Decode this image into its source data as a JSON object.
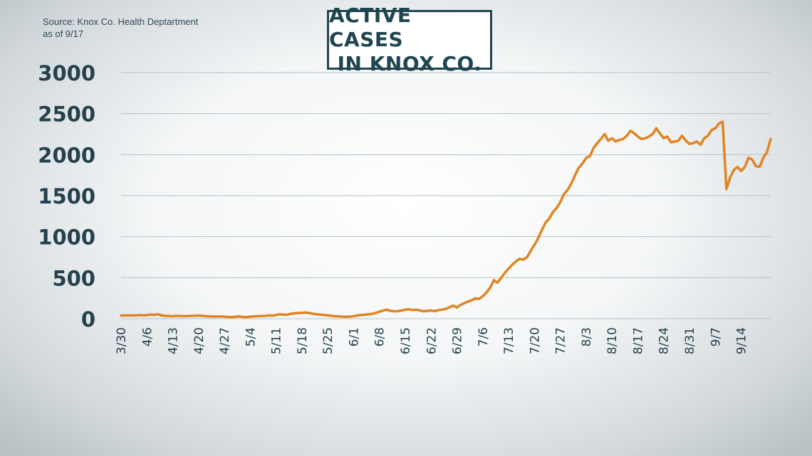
{
  "source": {
    "line1": "Source: Knox Co. Health Deptartment",
    "line2": "as of 9/17"
  },
  "colors": {
    "line": "#e08423",
    "grid": "#b8c0c3",
    "text": "#24414c",
    "title": "#1f4650"
  },
  "chart_data": {
    "type": "line",
    "title_lines": [
      "ACTIVE CASES",
      "IN KNOX CO."
    ],
    "xlabel": "",
    "ylabel": "",
    "ylim": [
      0,
      3000
    ],
    "yticks": [
      0,
      500,
      1000,
      1500,
      2000,
      2500,
      3000
    ],
    "xticks": [
      "3/30",
      "4/6",
      "4/13",
      "4/20",
      "4/27",
      "5/4",
      "5/11",
      "5/18",
      "5/25",
      "6/1",
      "6/8",
      "6/15",
      "6/22",
      "6/29",
      "7/6",
      "7/13",
      "7/20",
      "7/27",
      "8/3",
      "8/10",
      "8/17",
      "8/24",
      "8/31",
      "9/7",
      "9/14"
    ],
    "grid": true,
    "series": [
      {
        "name": "Active cases",
        "start_date": "3/30",
        "values": [
          38,
          40,
          42,
          39,
          41,
          44,
          40,
          43,
          50,
          48,
          55,
          40,
          35,
          32,
          30,
          35,
          33,
          30,
          32,
          34,
          36,
          38,
          35,
          30,
          28,
          27,
          25,
          28,
          25,
          22,
          20,
          24,
          28,
          22,
          20,
          25,
          28,
          30,
          32,
          35,
          40,
          38,
          45,
          55,
          50,
          48,
          60,
          65,
          70,
          72,
          75,
          70,
          60,
          55,
          50,
          45,
          40,
          35,
          30,
          28,
          25,
          24,
          25,
          30,
          40,
          45,
          48,
          55,
          60,
          70,
          85,
          100,
          110,
          95,
          90,
          92,
          100,
          110,
          115,
          105,
          110,
          100,
          90,
          95,
          100,
          92,
          105,
          110,
          120,
          140,
          160,
          135,
          170,
          190,
          210,
          225,
          250,
          240,
          275,
          320,
          380,
          470,
          440,
          500,
          560,
          610,
          660,
          700,
          730,
          720,
          750,
          830,
          900,
          980,
          1080,
          1170,
          1220,
          1300,
          1350,
          1420,
          1520,
          1570,
          1650,
          1750,
          1840,
          1890,
          1960,
          1980,
          2080,
          2140,
          2190,
          2250,
          2170,
          2200,
          2160,
          2180,
          2190,
          2230,
          2290,
          2260,
          2220,
          2190,
          2200,
          2220,
          2250,
          2320,
          2260,
          2200,
          2220,
          2150,
          2160,
          2170,
          2230,
          2170,
          2130,
          2140,
          2160,
          2120,
          2200,
          2230,
          2300,
          2320,
          2380,
          2400,
          1580,
          1720,
          1810,
          1850,
          1800,
          1850,
          1960,
          1940,
          1860,
          1850,
          1960,
          2030,
          2190
        ]
      }
    ]
  }
}
